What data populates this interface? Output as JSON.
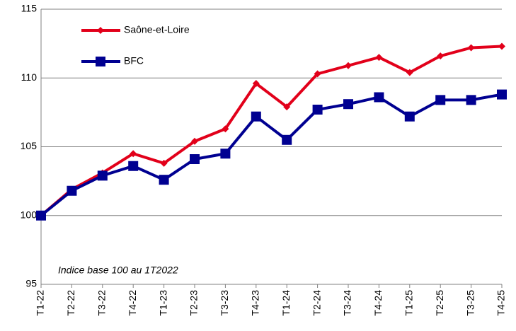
{
  "chart_data": {
    "type": "line",
    "annotation": "Indice base 100 au 1T2022",
    "categories": [
      "T1-22",
      "T2-22",
      "T3-22",
      "T4-22",
      "T1-23",
      "T2-23",
      "T3-23",
      "T4-23",
      "T1-24",
      "T2-24",
      "T3-24",
      "T4-24",
      "T1-25",
      "T2-25",
      "T3-25",
      "T4-25"
    ],
    "series": [
      {
        "name": "Saône-et-Loire",
        "color": "#e2001a",
        "marker": "diamond",
        "values": [
          100,
          101.9,
          103.1,
          104.5,
          103.8,
          105.4,
          106.3,
          109.6,
          107.9,
          110.3,
          110.9,
          111.5,
          110.4,
          111.6,
          112.2,
          112.3
        ]
      },
      {
        "name": "BFC",
        "color": "#000091",
        "marker": "square",
        "values": [
          100,
          101.8,
          102.9,
          103.6,
          102.6,
          104.1,
          104.5,
          107.2,
          105.5,
          107.7,
          108.1,
          108.6,
          107.2,
          108.4,
          108.4,
          108.8
        ]
      }
    ],
    "ylim": [
      95,
      115
    ],
    "yticks": [
      95,
      100,
      105,
      110,
      115
    ],
    "grid": true
  }
}
